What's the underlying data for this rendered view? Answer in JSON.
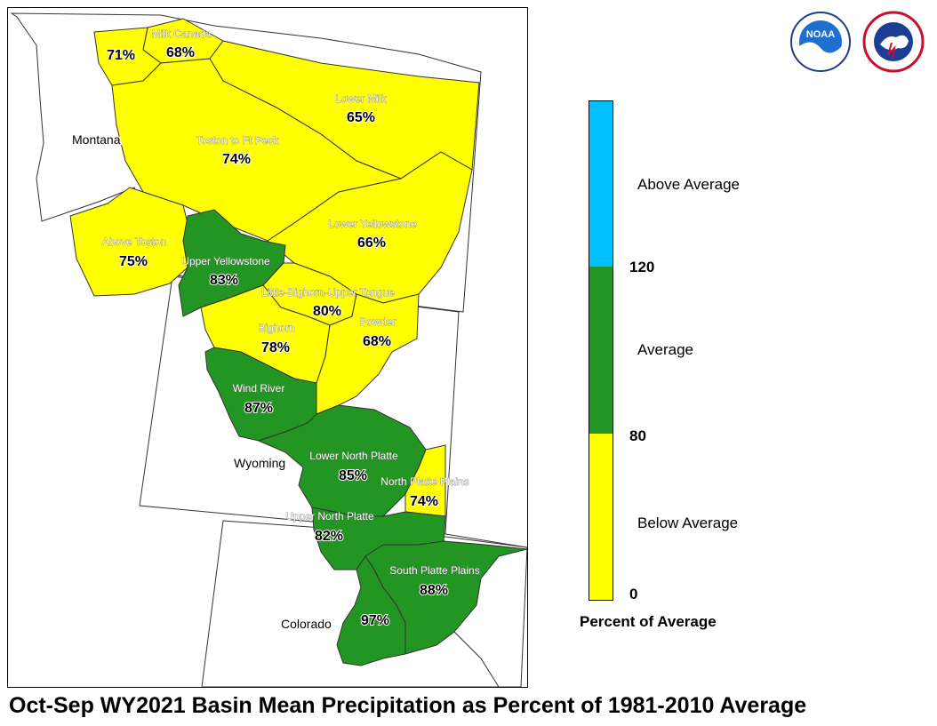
{
  "colors": {
    "below": "#ffff00",
    "average": "#229522",
    "above": "#00bfff",
    "border": "#333333"
  },
  "map": {
    "states": [
      {
        "id": "montana",
        "label": "Montana"
      },
      {
        "id": "wyoming",
        "label": "Wyoming"
      },
      {
        "id": "colorado",
        "label": "Colorado"
      }
    ],
    "basins": [
      {
        "id": "milk-canada",
        "name": "Milk Canada",
        "pct": "68%",
        "category": "below"
      },
      {
        "id": "milk-west",
        "name": "",
        "pct": "71%",
        "category": "below"
      },
      {
        "id": "lower-milk",
        "name": "Lower Milk",
        "pct": "65%",
        "category": "below"
      },
      {
        "id": "toston-ft-peck",
        "name": "Toston to Ft Peck",
        "pct": "74%",
        "category": "below"
      },
      {
        "id": "above-toston",
        "name": "Above Toston",
        "pct": "75%",
        "category": "below"
      },
      {
        "id": "lower-yellowstone",
        "name": "Lower Yellowstone",
        "pct": "66%",
        "category": "below"
      },
      {
        "id": "upper-yellowstone",
        "name": "Upper Yellowstone",
        "pct": "83%",
        "category": "average"
      },
      {
        "id": "little-bighorn",
        "name": "Little-Bighorn-Upper Tongue",
        "pct": "80%",
        "category": "below"
      },
      {
        "id": "bighorn",
        "name": "Bighorn",
        "pct": "78%",
        "category": "below"
      },
      {
        "id": "powder",
        "name": "Powder",
        "pct": "68%",
        "category": "below"
      },
      {
        "id": "wind-river",
        "name": "Wind River",
        "pct": "87%",
        "category": "average"
      },
      {
        "id": "lower-north-platte",
        "name": "Lower North Platte",
        "pct": "85%",
        "category": "average"
      },
      {
        "id": "north-platte-plains",
        "name": "North Platte Plains",
        "pct": "74%",
        "category": "below"
      },
      {
        "id": "upper-north-platte",
        "name": "Upper North Platte",
        "pct": "82%",
        "category": "average"
      },
      {
        "id": "south-platte-plains",
        "name": "South Platte Plains",
        "pct": "88%",
        "category": "average"
      },
      {
        "id": "south-platte-mtn",
        "name": "",
        "pct": "97%",
        "category": "average"
      }
    ]
  },
  "legend": {
    "title": "Percent of Average",
    "categories": [
      {
        "label": "Above Average",
        "color": "#00bfff"
      },
      {
        "label": "Average",
        "color": "#229522"
      },
      {
        "label": "Below Average",
        "color": "#ffff00"
      }
    ],
    "ticks": [
      "120",
      "80",
      "0"
    ]
  },
  "caption": "Oct-Sep WY2021 Basin Mean Precipitation as Percent of 1981-2010 Average",
  "logos": [
    {
      "id": "noaa",
      "icon": "noaa-logo-icon",
      "text": "NOAA"
    },
    {
      "id": "nws",
      "icon": "nws-logo-icon",
      "text": "NATIONAL WEATHER SERVICE"
    }
  ]
}
